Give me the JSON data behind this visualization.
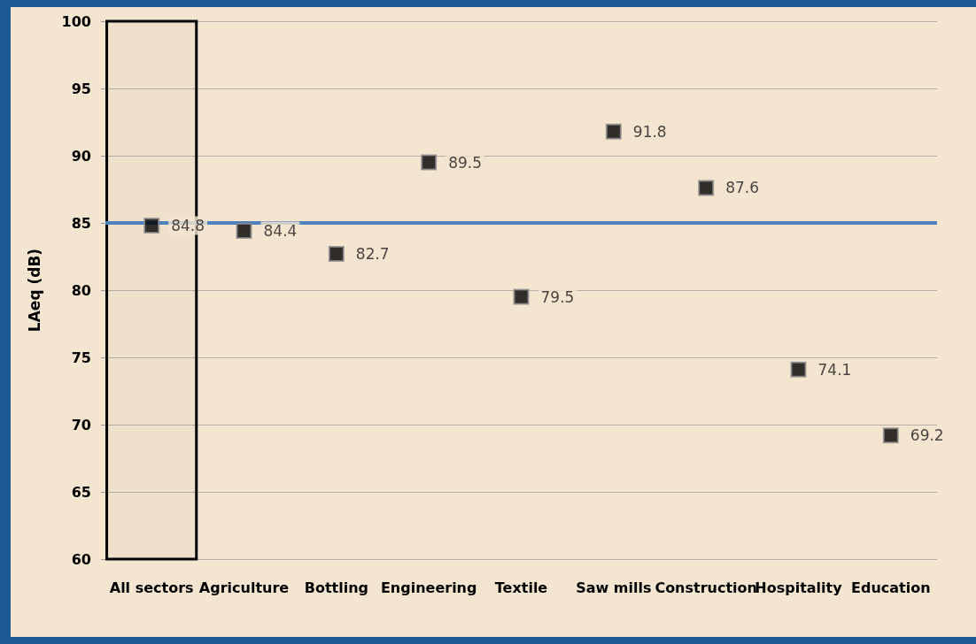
{
  "chart_data": {
    "type": "scatter",
    "ylabel": "LAeq (dB)",
    "categories": [
      "All sectors",
      "Agriculture",
      "Bottling",
      "Engineering",
      "Textile",
      "Saw mills",
      "Construction",
      "Hospitality",
      "Education"
    ],
    "series": [
      {
        "color": "#000000",
        "values": [
          84.8,
          84.4,
          82.7,
          89.5,
          79.5,
          91.8,
          87.6,
          74.1,
          69.2
        ]
      }
    ],
    "ylim": [
      60,
      100
    ],
    "yticks": [
      60,
      65,
      70,
      75,
      80,
      85,
      90,
      95,
      100
    ],
    "grid": "y",
    "marker": "square",
    "data_labels": true,
    "bands": [
      {
        "axis": "x",
        "from": "All sectors",
        "to": "All sectors",
        "color": "#000000"
      }
    ],
    "ref_lines": [
      {
        "axis": "y",
        "value": 85,
        "color": "#4f81bd",
        "line_style": "solid"
      }
    ]
  }
}
